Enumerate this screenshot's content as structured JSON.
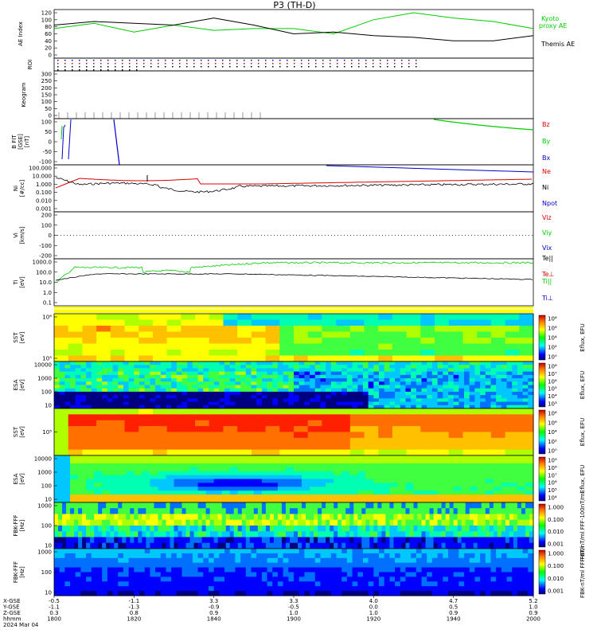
{
  "title": "P3 (TH-D)",
  "date_label": "2024 Mar 04",
  "colors": {
    "black": "#000000",
    "red": "#dd0000",
    "green": "#00cc00",
    "blue": "#0000cc",
    "yellow": "#ffff00"
  },
  "chart_data": [
    {
      "type": "line",
      "panel": "ae",
      "ylabel": "AE Index",
      "ylim": [
        0,
        120
      ],
      "yticks": [
        "120",
        "100",
        "80",
        "60",
        "40",
        "20",
        "0"
      ],
      "x": [
        "1800",
        "1810",
        "1820",
        "1830",
        "1840",
        "1850",
        "1900",
        "1910",
        "1920",
        "1930",
        "1940",
        "1950",
        "2000"
      ],
      "series": [
        {
          "name": "Kyoto proxy AE",
          "color": "#00cc00",
          "values": [
            75,
            90,
            65,
            85,
            70,
            75,
            75,
            60,
            100,
            120,
            105,
            95,
            75
          ]
        },
        {
          "name": "Themis AE",
          "color": "#000000",
          "values": [
            85,
            95,
            90,
            85,
            105,
            85,
            60,
            65,
            55,
            50,
            40,
            40,
            55
          ]
        }
      ]
    },
    {
      "type": "scatter",
      "panel": "roi",
      "ylabel": "ROI"
    },
    {
      "type": "line",
      "panel": "keogram",
      "ylabel": "Keogram",
      "yticks": [
        "300",
        "250",
        "200",
        "150",
        "100",
        "50",
        "0"
      ]
    },
    {
      "type": "line",
      "panel": "bfit",
      "ylabel": "B FIT\n[GSE]\n[nT]",
      "ylim": [
        -100,
        100
      ],
      "yticks": [
        "100",
        "50",
        "0",
        "-50",
        "-100"
      ],
      "legend": [
        "Bz",
        "By",
        "Bx"
      ]
    },
    {
      "type": "line",
      "panel": "density",
      "ylabel": "Ni\n[#/cc]",
      "yscale": "log",
      "yticks": [
        "100.000",
        "10.000",
        "1.000",
        "0.100",
        "0.010",
        "0.001"
      ],
      "legend": [
        "Ne",
        "Ni",
        "Npot"
      ]
    },
    {
      "type": "line",
      "panel": "velocity",
      "ylabel": "Vi\n[km/s]",
      "yticks": [
        "200",
        "100",
        "0",
        "-100",
        "-200"
      ],
      "legend": [
        "Viz",
        "Viy",
        "Vix"
      ]
    },
    {
      "type": "line",
      "panel": "temperature",
      "ylabel": "Ti\n[eV]",
      "yscale": "log",
      "yticks": [
        "1000.0",
        "100.0",
        "10.0",
        "1.0",
        "0.1"
      ],
      "legend": [
        "Te||",
        "Te⊥",
        "Ti||",
        "Ti⊥"
      ]
    },
    {
      "type": "heatmap",
      "panel": "sst_ion",
      "ylabel": "SST\n[eV]",
      "yticks": [
        "10⁶",
        "10⁵"
      ],
      "colorbar_label": "Eflux, EFU",
      "colorbar_ticks": [
        "10⁸",
        "10⁶",
        "10⁴",
        "10²",
        "10⁰"
      ]
    },
    {
      "type": "heatmap",
      "panel": "esa_ion",
      "ylabel": "ESA\n[eV]",
      "yticks": [
        "10000",
        "1000",
        "100",
        "10"
      ],
      "colorbar_label": "Eflux, EFU",
      "colorbar_ticks": [
        "10⁸",
        "10⁷",
        "10⁶",
        "10⁵",
        "10⁴",
        "10³"
      ]
    },
    {
      "type": "heatmap",
      "panel": "sst_elec",
      "ylabel": "SST\n[eV]",
      "yticks": [
        "10⁵"
      ],
      "colorbar_label": "Eflux, EFU",
      "colorbar_ticks": [
        "10⁸",
        "10⁶",
        "10⁴",
        "10²",
        "10⁰"
      ]
    },
    {
      "type": "heatmap",
      "panel": "esa_elec",
      "ylabel": "ESA\n[eV]",
      "yticks": [
        "10000",
        "1000",
        "100",
        "10"
      ],
      "colorbar_label": "Eflux, EFU",
      "colorbar_ticks": [
        "10⁹",
        "10⁸",
        "10⁷",
        "10⁶",
        "10⁵",
        "10⁴"
      ]
    },
    {
      "type": "heatmap",
      "panel": "fbk_fff_b",
      "ylabel": "FBK-FFF\n[Hz]",
      "yticks": [
        "1000",
        "100",
        "10"
      ],
      "colorbar_label": "FBK-nT/ml FFF-100nT/ml",
      "colorbar_ticks": [
        "1.000",
        "0.100",
        "0.010",
        "0.001"
      ]
    },
    {
      "type": "heatmap",
      "panel": "fbk_fff_e",
      "ylabel": "FBK-FFF\n[Hz]",
      "yticks": [
        "1000",
        "100",
        "10"
      ],
      "colorbar_label": "FBK-nT/ml FFF-nT/l",
      "colorbar_ticks": [
        "1.000",
        "0.100",
        "0.010",
        "0.001"
      ]
    }
  ],
  "panel_legends": {
    "ae": [
      "Kyoto",
      "proxy AE",
      "Themis AE"
    ]
  },
  "xaxis": {
    "row_labels": [
      "X-GSE",
      "Y-GSE",
      "Z-GSE",
      "hhmm",
      "2024 Mar 04"
    ],
    "columns": [
      {
        "x": "-0.5",
        "y": "-1.1",
        "z": "0.3",
        "t": "1800"
      },
      {
        "x": "-1.1",
        "y": "-1.3",
        "z": "0.8",
        "t": "1820"
      },
      {
        "x": "3.3",
        "y": "-0.9",
        "z": "0.9",
        "t": "1840"
      },
      {
        "x": "3.3",
        "y": "-0.5",
        "z": "1.0",
        "t": "1900"
      },
      {
        "x": "4.0",
        "y": "0.0",
        "z": "1.0",
        "t": "1920"
      },
      {
        "x": "4.7",
        "y": "0.5",
        "z": "0.9",
        "t": "1940"
      },
      {
        "x": "5.2",
        "y": "1.0",
        "z": "0.9",
        "t": "2000"
      }
    ]
  }
}
